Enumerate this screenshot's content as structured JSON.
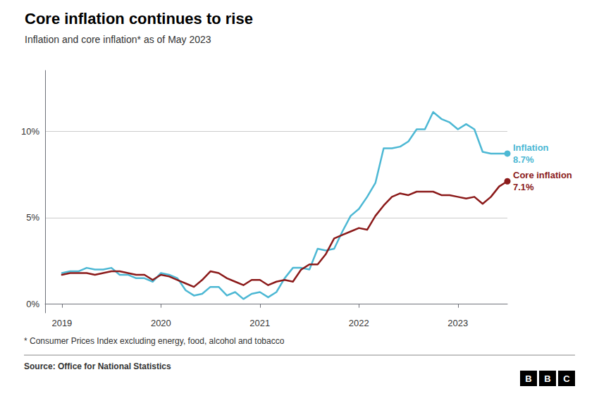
{
  "chart_data": {
    "type": "line",
    "title": "Core inflation continues to rise",
    "subtitle": "Inflation and core inflation* as of May 2023",
    "footnote": "* Consumer Prices Index excluding energy, food, alcohol and tobacco",
    "source": "Source: Office for National Statistics",
    "logo": "BBC",
    "x": [
      2019,
      2019.083333,
      2019.166667,
      2019.25,
      2019.333333,
      2019.416667,
      2019.5,
      2019.583333,
      2019.666667,
      2019.75,
      2019.833333,
      2019.916667,
      2020,
      2020.083333,
      2020.166667,
      2020.25,
      2020.333333,
      2020.416667,
      2020.5,
      2020.583333,
      2020.666667,
      2020.75,
      2020.833333,
      2020.916667,
      2021,
      2021.083333,
      2021.166667,
      2021.25,
      2021.333333,
      2021.416667,
      2021.5,
      2021.583333,
      2021.666667,
      2021.75,
      2021.833333,
      2021.916667,
      2022,
      2022.083333,
      2022.166667,
      2022.25,
      2022.333333,
      2022.416667,
      2022.5,
      2022.583333,
      2022.666667,
      2022.75,
      2022.833333,
      2022.916667,
      2023,
      2023.083333,
      2023.166667,
      2023.25,
      2023.333333,
      2023.416667,
      2023.5
    ],
    "xlim": [
      2018.83,
      2023.5
    ],
    "xticks": [
      2019,
      2020,
      2021,
      2022,
      2023
    ],
    "ylim": [
      -0.5,
      13.5
    ],
    "yticks": [
      {
        "value": 0,
        "label": "0%"
      },
      {
        "value": 5,
        "label": "5%"
      },
      {
        "value": 10,
        "label": "10%"
      }
    ],
    "grid": true,
    "series": [
      {
        "name": "Inflation",
        "color": "#4db8d4",
        "values": [
          1.8,
          1.9,
          1.9,
          2.1,
          2.0,
          2.0,
          2.1,
          1.7,
          1.7,
          1.5,
          1.5,
          1.3,
          1.8,
          1.7,
          1.5,
          0.8,
          0.5,
          0.6,
          1.0,
          1.0,
          0.5,
          0.7,
          0.3,
          0.6,
          0.7,
          0.4,
          0.7,
          1.5,
          2.1,
          2.1,
          2.0,
          3.2,
          3.1,
          3.2,
          4.2,
          5.1,
          5.5,
          6.2,
          7.0,
          9.0,
          9.0,
          9.1,
          9.4,
          10.1,
          10.1,
          11.1,
          10.7,
          10.5,
          10.1,
          10.4,
          10.1,
          8.8,
          8.7,
          8.7,
          8.7
        ]
      },
      {
        "name": "Core inflation",
        "color": "#8b1a1a",
        "values": [
          1.7,
          1.8,
          1.8,
          1.8,
          1.7,
          1.8,
          1.9,
          1.9,
          1.8,
          1.7,
          1.7,
          1.4,
          1.7,
          1.6,
          1.4,
          1.2,
          1.0,
          1.4,
          1.9,
          1.8,
          1.5,
          1.3,
          1.1,
          1.4,
          1.4,
          1.1,
          1.3,
          1.4,
          1.3,
          2.0,
          2.3,
          2.3,
          2.9,
          3.8,
          4.0,
          4.2,
          4.4,
          4.3,
          5.1,
          5.7,
          6.2,
          6.4,
          6.3,
          6.5,
          6.5,
          6.5,
          6.3,
          6.3,
          6.2,
          6.1,
          6.2,
          5.8,
          6.2,
          6.8,
          7.1
        ]
      }
    ],
    "annotations": [
      {
        "series": "Inflation",
        "text": "8.7%"
      },
      {
        "series": "Core inflation",
        "text": "7.1%"
      }
    ]
  }
}
